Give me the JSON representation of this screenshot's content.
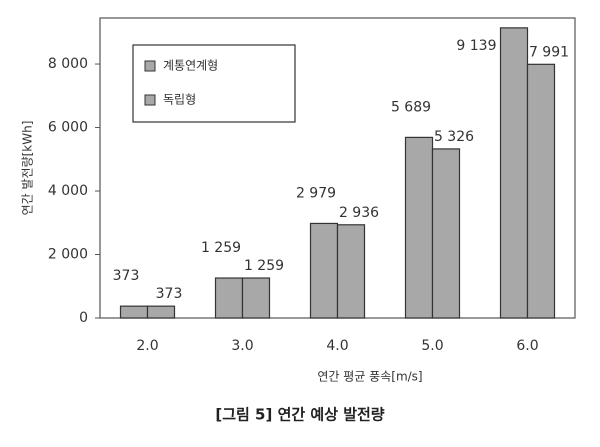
{
  "chart_data": {
    "type": "bar",
    "title": "[그림 5] 연간 예상 발전량",
    "x_label": "연간 평균 풍속[m/s]",
    "y_label": "연간 발전량[kWh]",
    "categories": [
      "2.0",
      "3.0",
      "4.0",
      "5.0",
      "6.0"
    ],
    "series": [
      {
        "name": "계통연계형",
        "color": "#a8a8a8",
        "values": [
          373,
          1259,
          2979,
          5689,
          9139
        ],
        "value_labels": [
          "373",
          "1 259",
          "2 979",
          "5 689",
          "9 139"
        ]
      },
      {
        "name": "독립형",
        "color": "#a8a8a8",
        "values": [
          373,
          1259,
          2936,
          5326,
          7991
        ],
        "value_labels": [
          "373",
          "1 259",
          "2 936",
          "5 326",
          "7 991"
        ]
      }
    ],
    "ylim": [
      0,
      9450
    ],
    "yticks": [
      0,
      {
        "value": 2000,
        "label": "2 000"
      },
      {
        "value": 4000,
        "label": "4 000"
      },
      {
        "value": 6000,
        "label": "6 000"
      },
      {
        "value": 8000,
        "label": "8 000"
      }
    ],
    "grid": false,
    "legend": "upper left"
  }
}
